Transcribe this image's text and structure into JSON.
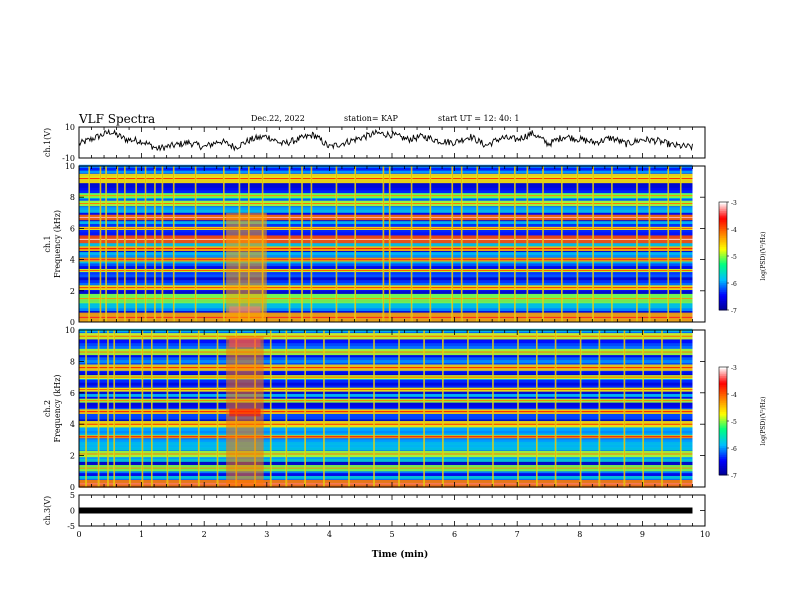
{
  "header": {
    "title": "VLF Spectra",
    "date": "Dec.22, 2022",
    "station": "station= KAP",
    "start_ut": "start  UT  =   12: 40: 1"
  },
  "chart_data": [
    {
      "type": "line",
      "panel": "ch1-waveform",
      "ylabel": "ch.1(V)",
      "ylim": [
        -10,
        10
      ],
      "ytick_labels": [
        "10",
        "-10"
      ],
      "xlim": [
        0,
        10
      ],
      "data_end_min": 9.8,
      "x": [
        0.0,
        0.25,
        0.5,
        0.75,
        1.0,
        1.25,
        1.5,
        1.75,
        2.0,
        2.25,
        2.5,
        2.75,
        3.0,
        3.25,
        3.5,
        3.75,
        4.0,
        4.25,
        4.5,
        4.75,
        5.0,
        5.25,
        5.5,
        5.75,
        6.0,
        6.25,
        6.5,
        6.75,
        7.0,
        7.25,
        7.5,
        7.75,
        8.0,
        8.25,
        8.5,
        8.75,
        9.0,
        9.25,
        9.5,
        9.8
      ],
      "y": [
        -1,
        3,
        7,
        2,
        1,
        -4,
        -2,
        0,
        -3,
        1,
        -3,
        2,
        4,
        -1,
        2,
        5,
        -3,
        0,
        3,
        6,
        5,
        2,
        4,
        1,
        0,
        4,
        -2,
        3,
        2,
        6,
        -1,
        4,
        2,
        0,
        3,
        -1,
        2,
        1,
        -2,
        -3
      ],
      "color": "#000000"
    },
    {
      "type": "heatmap",
      "panel": "ch1-spectrogram",
      "ylabel": "ch.1",
      "ylabel2": "Frequency (kHz)",
      "ylim": [
        0,
        10
      ],
      "ytick_labels": [
        "0",
        "2",
        "4",
        "6",
        "8",
        "10"
      ],
      "xlim": [
        0,
        10
      ],
      "data_end_min": 9.8,
      "background_log_psd": -6.2,
      "bands": [
        {
          "f": 9.2,
          "w": 0.6,
          "v": -4.6
        },
        {
          "f": 8.1,
          "w": 0.3,
          "v": -5.0
        },
        {
          "f": 7.6,
          "w": 0.35,
          "v": -4.9
        },
        {
          "f": 6.7,
          "w": 0.35,
          "v": -4.0
        },
        {
          "f": 6.0,
          "w": 0.2,
          "v": -4.7
        },
        {
          "f": 5.3,
          "w": 0.5,
          "v": -3.9
        },
        {
          "f": 4.7,
          "w": 0.3,
          "v": -4.4
        },
        {
          "f": 4.0,
          "w": 0.25,
          "v": -4.3
        },
        {
          "f": 3.3,
          "w": 0.2,
          "v": -4.8
        },
        {
          "f": 2.2,
          "w": 0.3,
          "v": -4.6
        },
        {
          "f": 1.5,
          "w": 0.6,
          "v": -5.0
        },
        {
          "f": 0.3,
          "w": 0.6,
          "v": -4.3
        }
      ],
      "bursts": [
        {
          "t0": 2.35,
          "t1": 3.0,
          "f0": 0.0,
          "f1": 7.0,
          "v": -4.3
        },
        {
          "t0": 2.4,
          "t1": 2.9,
          "f0": 0.6,
          "f1": 1.0,
          "v": -3.3
        }
      ],
      "spikes": [
        0.15,
        0.33,
        0.42,
        0.6,
        0.72,
        0.9,
        1.05,
        1.2,
        1.32,
        1.5,
        1.85,
        2.3,
        2.55,
        2.7,
        2.92,
        3.35,
        3.55,
        3.7,
        4.1,
        4.4,
        4.85,
        4.95,
        5.3,
        5.6,
        5.95,
        6.1,
        6.35,
        6.7,
        6.95,
        7.15,
        7.4,
        7.7,
        7.95,
        8.2,
        8.5,
        8.9,
        9.1,
        9.4,
        9.6
      ]
    },
    {
      "type": "heatmap",
      "panel": "ch2-spectrogram",
      "ylabel": "ch.2",
      "ylabel2": "Frequency (kHz)",
      "ylim": [
        0,
        10
      ],
      "ytick_labels": [
        "0",
        "2",
        "4",
        "6",
        "8",
        "10"
      ],
      "xlim": [
        0,
        10
      ],
      "data_end_min": 9.8,
      "background_log_psd": -6.2,
      "bands": [
        {
          "f": 9.6,
          "w": 0.4,
          "v": -4.8
        },
        {
          "f": 8.6,
          "w": 0.4,
          "v": -4.9
        },
        {
          "f": 7.6,
          "w": 0.4,
          "v": -4.5
        },
        {
          "f": 7.0,
          "w": 0.25,
          "v": -4.8
        },
        {
          "f": 6.2,
          "w": 0.25,
          "v": -4.7
        },
        {
          "f": 5.5,
          "w": 0.25,
          "v": -4.9
        },
        {
          "f": 4.8,
          "w": 0.3,
          "v": -4.5
        },
        {
          "f": 4.0,
          "w": 0.4,
          "v": -4.6
        },
        {
          "f": 3.2,
          "w": 0.2,
          "v": -4.4
        },
        {
          "f": 2.1,
          "w": 0.4,
          "v": -4.9
        },
        {
          "f": 1.2,
          "w": 0.4,
          "v": -5.0
        },
        {
          "f": 0.2,
          "w": 0.5,
          "v": -4.1
        }
      ],
      "bursts": [
        {
          "t0": 2.35,
          "t1": 2.95,
          "f0": 0.0,
          "f1": 9.6,
          "v": -4.1
        },
        {
          "t0": 2.4,
          "t1": 2.9,
          "f0": 8.9,
          "f1": 9.5,
          "v": -3.4
        },
        {
          "t0": 2.4,
          "t1": 2.9,
          "f0": 4.5,
          "f1": 5.0,
          "v": -3.6
        }
      ],
      "spikes": [
        0.1,
        0.3,
        0.45,
        0.55,
        0.8,
        1.0,
        1.15,
        1.4,
        1.6,
        1.9,
        2.2,
        2.5,
        2.8,
        3.05,
        3.3,
        3.6,
        3.9,
        4.3,
        4.7,
        5.1,
        5.5,
        5.8,
        6.2,
        6.6,
        7.0,
        7.3,
        7.6,
        8.0,
        8.3,
        8.7,
        9.0,
        9.3,
        9.6
      ]
    },
    {
      "type": "line",
      "panel": "ch3-signal",
      "ylabel": "ch.3(V)",
      "ylim": [
        -5,
        5
      ],
      "ytick_labels": [
        "5",
        "0",
        "-5"
      ],
      "xlim": [
        0,
        10
      ],
      "data_end_min": 9.8,
      "level": 0,
      "xtick_labels": [
        "0",
        "1",
        "2",
        "3",
        "4",
        "5",
        "6",
        "7",
        "8",
        "9",
        "10"
      ],
      "xlabel": "Time  (min)",
      "color": "#000000"
    }
  ],
  "colorbar": {
    "range": [
      -7,
      -3
    ],
    "tick_labels": [
      "-3",
      "-4",
      "-5",
      "-6",
      "-7"
    ],
    "label": "log(PSD)(V²/Hz)",
    "colormap": [
      "#00008f",
      "#0000ff",
      "#00bfff",
      "#00ff80",
      "#ffff00",
      "#ff8000",
      "#ff0000",
      "#ffffff"
    ]
  }
}
